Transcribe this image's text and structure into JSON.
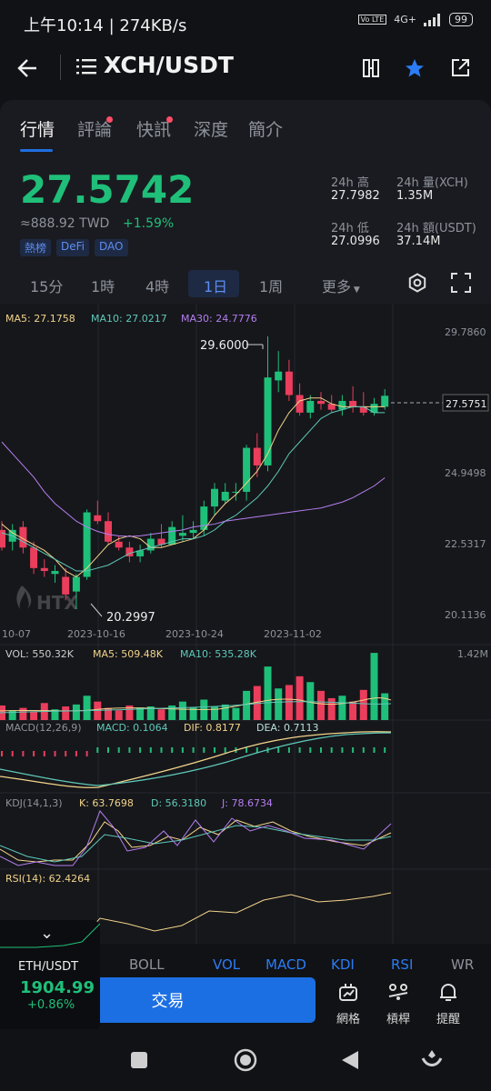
{
  "status": {
    "time": "上午10:14",
    "speed": "274KB/s",
    "network": "4G+",
    "volte": "Vo LTE",
    "battery": "99"
  },
  "nav": {
    "title": "XCH/USDT",
    "icons": [
      "back-arrow-icon",
      "menu-list-icon",
      "split-screen-icon",
      "star-icon",
      "share-icon"
    ]
  },
  "tabs": [
    {
      "label": "行情",
      "active": true,
      "dot": false
    },
    {
      "label": "評論",
      "active": false,
      "dot": true
    },
    {
      "label": "快訊",
      "active": false,
      "dot": true
    },
    {
      "label": "深度",
      "active": false,
      "dot": false
    },
    {
      "label": "簡介",
      "active": false,
      "dot": false
    }
  ],
  "ticker": {
    "price": "27.5742",
    "twd": "≈888.92 TWD",
    "change": "+1.59%",
    "tags": [
      "熱榜",
      "DeFi",
      "DAO"
    ],
    "stats": [
      {
        "label": "24h 高",
        "value": "27.7982"
      },
      {
        "label": "24h 量(XCH)",
        "value": "1.35M"
      },
      {
        "label": "24h 低",
        "value": "27.0996"
      },
      {
        "label": "24h 額(USDT)",
        "value": "37.14M"
      }
    ]
  },
  "periods": [
    "15分",
    "1時",
    "4時",
    "1日",
    "1周",
    "更多"
  ],
  "active_period": "1日",
  "colors": {
    "up": "#1fbf7a",
    "down": "#ea3e5c",
    "accent": "#1c6fe3",
    "ma5": "#f2d48a",
    "ma10": "#5ec9b9",
    "ma30": "#b57ef0"
  },
  "chart": {
    "ma_legend": {
      "ma5": "MA5: 27.1758",
      "ma10": "MA10: 27.0217",
      "ma30": "MA30: 24.7776"
    },
    "high_label": "29.6000",
    "low_label": "20.2997",
    "last_price": "27.5751",
    "watermark": "HTX",
    "y_ticks": [
      "29.7860",
      "24.9498",
      "22.5317",
      "20.1136"
    ],
    "x_ticks": [
      "10-07",
      "2023-10-16",
      "2023-10-24",
      "2023-11-02"
    ],
    "vol_legend": {
      "vol": "VOL: 550.32K",
      "ma5": "MA5: 509.48K",
      "ma10": "MA10: 535.28K"
    },
    "vol_max": "1.42M",
    "macd_legend": {
      "name": "MACD(12,26,9)",
      "macd": "MACD: 0.1064",
      "dif": "DIF: 0.8177",
      "dea": "DEA: 0.7113"
    },
    "kdj_legend": {
      "name": "KDJ(14,1,3)",
      "k": "K: 63.7698",
      "d": "D: 56.3180",
      "j": "J: 78.6734"
    },
    "rsi_legend": {
      "name": "RSI(14): 62.4264"
    }
  },
  "chart_data": {
    "type": "candlestick",
    "ylim": [
      20.1136,
      29.786
    ],
    "y_ticks": [
      29.786,
      24.9498,
      22.5317,
      20.1136
    ],
    "candles": [
      {
        "o": 23.0,
        "h": 23.3,
        "l": 22.3,
        "c": 22.4
      },
      {
        "o": 22.6,
        "h": 23.2,
        "l": 22.3,
        "c": 23.0
      },
      {
        "o": 23.1,
        "h": 23.3,
        "l": 22.2,
        "c": 22.4
      },
      {
        "o": 22.4,
        "h": 22.6,
        "l": 21.5,
        "c": 21.7
      },
      {
        "o": 21.7,
        "h": 22.0,
        "l": 21.4,
        "c": 21.6
      },
      {
        "o": 21.5,
        "h": 21.8,
        "l": 21.2,
        "c": 21.6
      },
      {
        "o": 21.4,
        "h": 21.7,
        "l": 20.6,
        "c": 20.8
      },
      {
        "o": 20.9,
        "h": 21.5,
        "l": 20.2997,
        "c": 21.4
      },
      {
        "o": 21.4,
        "h": 23.7,
        "l": 21.3,
        "c": 23.6
      },
      {
        "o": 23.5,
        "h": 24.0,
        "l": 23.2,
        "c": 23.3
      },
      {
        "o": 23.3,
        "h": 23.6,
        "l": 22.5,
        "c": 22.6
      },
      {
        "o": 22.6,
        "h": 22.8,
        "l": 22.3,
        "c": 22.4
      },
      {
        "o": 22.4,
        "h": 22.6,
        "l": 21.9,
        "c": 22.1
      },
      {
        "o": 22.1,
        "h": 22.5,
        "l": 21.9,
        "c": 22.3
      },
      {
        "o": 22.3,
        "h": 22.9,
        "l": 22.2,
        "c": 22.7
      },
      {
        "o": 22.7,
        "h": 23.2,
        "l": 22.4,
        "c": 22.5
      },
      {
        "o": 22.5,
        "h": 23.3,
        "l": 22.5,
        "c": 23.1
      },
      {
        "o": 22.8,
        "h": 23.5,
        "l": 22.6,
        "c": 22.9
      },
      {
        "o": 22.9,
        "h": 23.3,
        "l": 22.7,
        "c": 23.0
      },
      {
        "o": 23.0,
        "h": 24.0,
        "l": 22.8,
        "c": 23.8
      },
      {
        "o": 23.8,
        "h": 24.6,
        "l": 23.5,
        "c": 24.4
      },
      {
        "o": 24.0,
        "h": 24.6,
        "l": 23.9,
        "c": 24.3
      },
      {
        "o": 24.3,
        "h": 24.6,
        "l": 24.0,
        "c": 24.3
      },
      {
        "o": 24.3,
        "h": 25.9,
        "l": 24.0,
        "c": 25.8
      },
      {
        "o": 25.8,
        "h": 26.3,
        "l": 24.8,
        "c": 25.2
      },
      {
        "o": 25.2,
        "h": 29.6,
        "l": 25.0,
        "c": 28.2
      },
      {
        "o": 28.1,
        "h": 29.1,
        "l": 27.7,
        "c": 28.4
      },
      {
        "o": 28.4,
        "h": 28.8,
        "l": 27.4,
        "c": 27.6
      },
      {
        "o": 27.6,
        "h": 28.0,
        "l": 26.9,
        "c": 27.0
      },
      {
        "o": 27.0,
        "h": 27.6,
        "l": 26.8,
        "c": 27.4
      },
      {
        "o": 27.4,
        "h": 27.7,
        "l": 27.1,
        "c": 27.3
      },
      {
        "o": 27.3,
        "h": 27.6,
        "l": 27.0,
        "c": 27.1
      },
      {
        "o": 27.1,
        "h": 27.6,
        "l": 26.9,
        "c": 27.4
      },
      {
        "o": 27.4,
        "h": 27.9,
        "l": 27.0,
        "c": 27.2
      },
      {
        "o": 27.2,
        "h": 27.7,
        "l": 26.9,
        "c": 27.0
      },
      {
        "o": 27.0,
        "h": 27.5,
        "l": 26.9,
        "c": 27.3
      },
      {
        "o": 27.2,
        "h": 27.8,
        "l": 27.1,
        "c": 27.5751
      }
    ],
    "ma5": [
      23.2,
      22.9,
      22.7,
      22.5,
      22.3,
      22.0,
      21.6,
      21.4,
      21.7,
      22.1,
      22.5,
      22.7,
      22.8,
      22.7,
      22.4,
      22.4,
      22.5,
      22.6,
      22.7,
      23.0,
      23.5,
      23.9,
      24.2,
      24.6,
      25.0,
      25.6,
      26.4,
      27.0,
      27.4,
      27.5,
      27.5,
      27.3,
      27.2,
      27.2,
      27.2,
      27.2,
      27.2
    ],
    "ma10": [
      22.9,
      22.8,
      22.6,
      22.4,
      22.2,
      22.0,
      21.8,
      21.6,
      21.6,
      21.7,
      21.8,
      22.0,
      22.2,
      22.3,
      22.4,
      22.5,
      22.6,
      22.7,
      22.7,
      22.8,
      23.0,
      23.3,
      23.5,
      23.8,
      24.1,
      24.5,
      25.0,
      25.6,
      26.0,
      26.4,
      26.8,
      27.0,
      27.1,
      27.2,
      27.2,
      27.0,
      27.0
    ],
    "ma30": [
      26.0,
      25.6,
      25.2,
      24.8,
      24.3,
      23.9,
      23.6,
      23.3,
      23.1,
      22.95,
      22.85,
      22.8,
      22.78,
      22.8,
      22.85,
      22.9,
      22.95,
      23.0,
      23.1,
      23.15,
      23.2,
      23.3,
      23.35,
      23.4,
      23.45,
      23.5,
      23.55,
      23.6,
      23.65,
      23.7,
      23.75,
      23.85,
      23.95,
      24.1,
      24.3,
      24.5,
      24.78
    ],
    "volume_max": 1420000,
    "volume": [
      300000,
      200000,
      250000,
      180000,
      350000,
      220000,
      280000,
      320000,
      500000,
      380000,
      250000,
      200000,
      300000,
      260000,
      280000,
      220000,
      300000,
      380000,
      260000,
      420000,
      280000,
      320000,
      250000,
      600000,
      700000,
      1100000,
      650000,
      720000,
      900000,
      780000,
      600000,
      450000,
      500000,
      380000,
      620000,
      1380000,
      550320
    ]
  }
}
